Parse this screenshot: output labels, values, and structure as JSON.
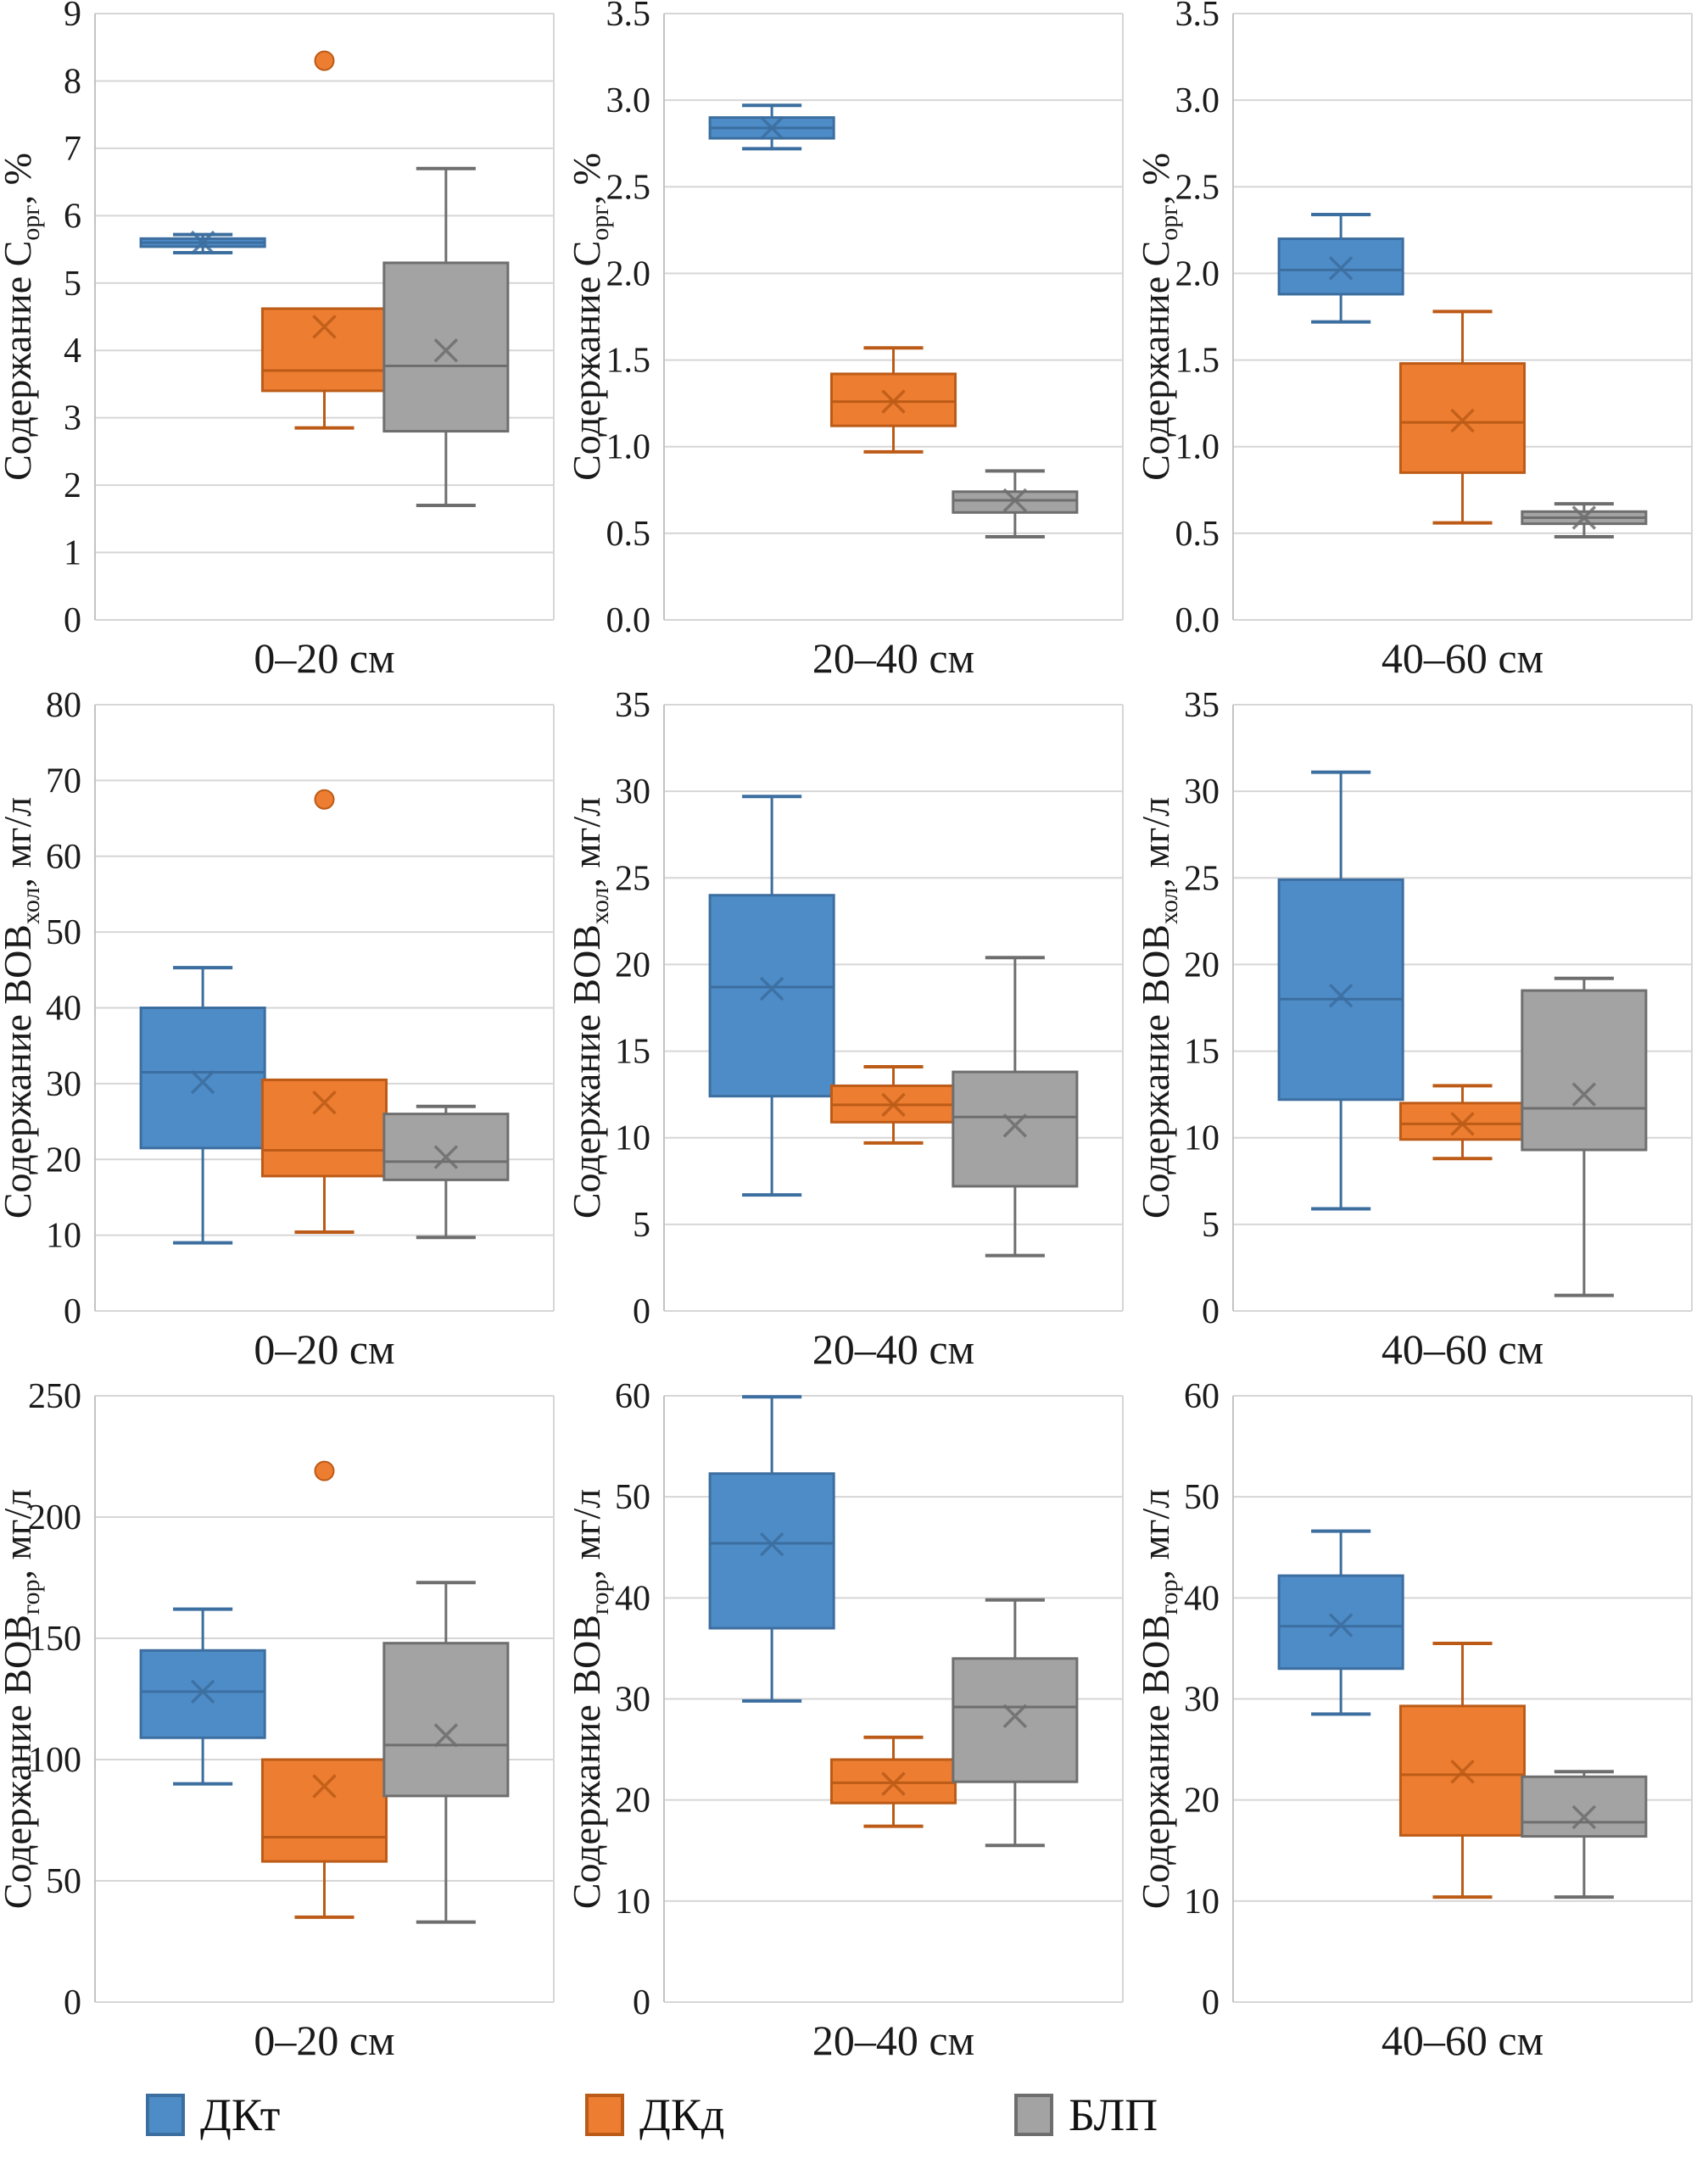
{
  "figure": {
    "kind": "boxplot-grid",
    "rows": 3,
    "cols": 3
  },
  "legend": {
    "items": [
      {
        "key": "dkt",
        "label": "ДКт"
      },
      {
        "key": "dkd",
        "label": "ДКд"
      },
      {
        "key": "blp",
        "label": "БЛП"
      }
    ]
  },
  "colors": {
    "dkt": {
      "fill": "#4E8CC8",
      "stroke": "#3C6E9F"
    },
    "dkd": {
      "fill": "#ED7D31",
      "stroke": "#BC5B17"
    },
    "blp": {
      "fill": "#A3A3A3",
      "stroke": "#6E6E6E"
    },
    "grid_line": "#D6D6D6",
    "axis_line": "#C3C3C3",
    "text": "#1A1A1A"
  },
  "chart_data": [
    {
      "type": "box",
      "x_label": "0–20 см",
      "ylabel": {
        "prefix": "Содержание C",
        "sub": "орг",
        "suffix": ", %"
      },
      "ylim": [
        0,
        9
      ],
      "ystep": 1,
      "ydecimals": 0,
      "grid": true,
      "series": [
        {
          "key": "dkt",
          "name": "ДКт",
          "low": 5.45,
          "q1": 5.54,
          "median": 5.6,
          "q3": 5.66,
          "high": 5.72,
          "mean": 5.6,
          "outliers": []
        },
        {
          "key": "dkd",
          "name": "ДКд",
          "low": 2.85,
          "q1": 3.4,
          "median": 3.7,
          "q3": 4.62,
          "high": 4.62,
          "mean": 4.35,
          "outliers": [
            8.3
          ]
        },
        {
          "key": "blp",
          "name": "БЛП",
          "low": 1.7,
          "q1": 2.8,
          "median": 3.77,
          "q3": 5.3,
          "high": 6.7,
          "mean": 4.0,
          "outliers": []
        }
      ]
    },
    {
      "type": "box",
      "x_label": "20–40 см",
      "ylabel": {
        "prefix": "Содержание C",
        "sub": "орг",
        "suffix": ", %"
      },
      "ylim": [
        0,
        3.5
      ],
      "ystep": 0.5,
      "ydecimals": 1,
      "grid": true,
      "series": [
        {
          "key": "dkt",
          "name": "ДКт",
          "low": 2.72,
          "q1": 2.78,
          "median": 2.84,
          "q3": 2.9,
          "high": 2.97,
          "mean": 2.84,
          "outliers": []
        },
        {
          "key": "dkd",
          "name": "ДКд",
          "low": 0.97,
          "q1": 1.12,
          "median": 1.26,
          "q3": 1.42,
          "high": 1.57,
          "mean": 1.26,
          "outliers": []
        },
        {
          "key": "blp",
          "name": "БЛП",
          "low": 0.48,
          "q1": 0.62,
          "median": 0.69,
          "q3": 0.74,
          "high": 0.86,
          "mean": 0.69,
          "outliers": []
        }
      ]
    },
    {
      "type": "box",
      "x_label": "40–60 см",
      "ylabel": {
        "prefix": "Содержание C",
        "sub": "орг",
        "suffix": ", %"
      },
      "ylim": [
        0,
        3.5
      ],
      "ystep": 0.5,
      "ydecimals": 1,
      "grid": true,
      "series": [
        {
          "key": "dkt",
          "name": "ДКт",
          "low": 1.72,
          "q1": 1.88,
          "median": 2.02,
          "q3": 2.2,
          "high": 2.34,
          "mean": 2.03,
          "outliers": []
        },
        {
          "key": "dkd",
          "name": "ДКд",
          "low": 0.56,
          "q1": 0.85,
          "median": 1.14,
          "q3": 1.48,
          "high": 1.78,
          "mean": 1.15,
          "outliers": []
        },
        {
          "key": "blp",
          "name": "БЛП",
          "low": 0.48,
          "q1": 0.555,
          "median": 0.59,
          "q3": 0.625,
          "high": 0.67,
          "mean": 0.59,
          "outliers": []
        }
      ]
    },
    {
      "type": "box",
      "x_label": "0–20 см",
      "ylabel": {
        "prefix": "Содержание ВОВ",
        "sub": "хол",
        "suffix": ", мг/л"
      },
      "ylim": [
        0,
        80
      ],
      "ystep": 10,
      "ydecimals": 0,
      "grid": true,
      "series": [
        {
          "key": "dkt",
          "name": "ДКт",
          "low": 9.0,
          "q1": 21.5,
          "median": 31.5,
          "q3": 40.0,
          "high": 45.3,
          "mean": 30.2,
          "outliers": []
        },
        {
          "key": "dkd",
          "name": "ДКд",
          "low": 10.4,
          "q1": 17.8,
          "median": 21.2,
          "q3": 30.5,
          "high": 30.5,
          "mean": 27.5,
          "outliers": [
            67.5
          ]
        },
        {
          "key": "blp",
          "name": "БЛП",
          "low": 9.7,
          "q1": 17.3,
          "median": 19.7,
          "q3": 26.0,
          "high": 27.0,
          "mean": 20.3,
          "outliers": []
        }
      ]
    },
    {
      "type": "box",
      "x_label": "20–40 см",
      "ylabel": {
        "prefix": "Содержание ВОВ",
        "sub": "хол",
        "suffix": ", мг/л"
      },
      "ylim": [
        0,
        35
      ],
      "ystep": 5,
      "ydecimals": 0,
      "grid": true,
      "series": [
        {
          "key": "dkt",
          "name": "ДКт",
          "low": 6.7,
          "q1": 12.4,
          "median": 18.7,
          "q3": 24.0,
          "high": 29.7,
          "mean": 18.6,
          "outliers": []
        },
        {
          "key": "dkd",
          "name": "ДКд",
          "low": 9.7,
          "q1": 10.9,
          "median": 11.9,
          "q3": 13.0,
          "high": 14.1,
          "mean": 11.9,
          "outliers": []
        },
        {
          "key": "blp",
          "name": "БЛП",
          "low": 3.2,
          "q1": 7.2,
          "median": 11.2,
          "q3": 13.8,
          "high": 20.4,
          "mean": 10.7,
          "outliers": []
        }
      ]
    },
    {
      "type": "box",
      "x_label": "40–60 см",
      "ylabel": {
        "prefix": "Содержание ВОВ",
        "sub": "хол",
        "suffix": ", мг/л"
      },
      "ylim": [
        0,
        35
      ],
      "ystep": 5,
      "ydecimals": 0,
      "grid": true,
      "series": [
        {
          "key": "dkt",
          "name": "ДКт",
          "low": 5.9,
          "q1": 12.2,
          "median": 18.0,
          "q3": 24.9,
          "high": 31.1,
          "mean": 18.2,
          "outliers": []
        },
        {
          "key": "dkd",
          "name": "ДКд",
          "low": 8.8,
          "q1": 9.9,
          "median": 10.8,
          "q3": 12.0,
          "high": 13.0,
          "mean": 10.8,
          "outliers": []
        },
        {
          "key": "blp",
          "name": "БЛП",
          "low": 0.9,
          "q1": 9.3,
          "median": 11.7,
          "q3": 18.5,
          "high": 19.2,
          "mean": 12.5,
          "outliers": []
        }
      ]
    },
    {
      "type": "box",
      "x_label": "0–20 см",
      "ylabel": {
        "prefix": "Содержание ВОВ",
        "sub": "гор",
        "suffix": ", мг/л"
      },
      "ylim": [
        0,
        250
      ],
      "ystep": 50,
      "ydecimals": 0,
      "grid": true,
      "series": [
        {
          "key": "dkt",
          "name": "ДКт",
          "low": 90,
          "q1": 109,
          "median": 128,
          "q3": 145,
          "high": 162,
          "mean": 128,
          "outliers": []
        },
        {
          "key": "dkd",
          "name": "ДКд",
          "low": 35,
          "q1": 58,
          "median": 68,
          "q3": 100,
          "high": 100,
          "mean": 89,
          "outliers": [
            219
          ]
        },
        {
          "key": "blp",
          "name": "БЛП",
          "low": 33,
          "q1": 85,
          "median": 106,
          "q3": 148,
          "high": 173,
          "mean": 110,
          "outliers": []
        }
      ]
    },
    {
      "type": "box",
      "x_label": "20–40 см",
      "ylabel": {
        "prefix": "Содержание ВОВ",
        "sub": "гор",
        "suffix": ", мг/л"
      },
      "ylim": [
        0,
        60
      ],
      "ystep": 10,
      "ydecimals": 0,
      "grid": true,
      "series": [
        {
          "key": "dkt",
          "name": "ДКт",
          "low": 29.8,
          "q1": 37.0,
          "median": 45.4,
          "q3": 52.3,
          "high": 59.9,
          "mean": 45.3,
          "outliers": []
        },
        {
          "key": "dkd",
          "name": "ДКд",
          "low": 17.4,
          "q1": 19.7,
          "median": 21.7,
          "q3": 24.0,
          "high": 26.2,
          "mean": 21.6,
          "outliers": []
        },
        {
          "key": "blp",
          "name": "БЛП",
          "low": 15.5,
          "q1": 21.8,
          "median": 29.2,
          "q3": 34.0,
          "high": 39.8,
          "mean": 28.3,
          "outliers": []
        }
      ]
    },
    {
      "type": "box",
      "x_label": "40–60 см",
      "ylabel": {
        "prefix": "Содержание ВОВ",
        "sub": "гор",
        "suffix": ", мг/л"
      },
      "ylim": [
        0,
        60
      ],
      "ystep": 10,
      "ydecimals": 0,
      "grid": true,
      "series": [
        {
          "key": "dkt",
          "name": "ДКт",
          "low": 28.5,
          "q1": 33.0,
          "median": 37.2,
          "q3": 42.2,
          "high": 46.6,
          "mean": 37.3,
          "outliers": []
        },
        {
          "key": "dkd",
          "name": "ДКд",
          "low": 10.4,
          "q1": 16.5,
          "median": 22.5,
          "q3": 29.3,
          "high": 35.5,
          "mean": 22.8,
          "outliers": []
        },
        {
          "key": "blp",
          "name": "БЛП",
          "low": 10.4,
          "q1": 16.4,
          "median": 17.8,
          "q3": 22.3,
          "high": 22.8,
          "mean": 18.3,
          "outliers": []
        }
      ]
    }
  ]
}
